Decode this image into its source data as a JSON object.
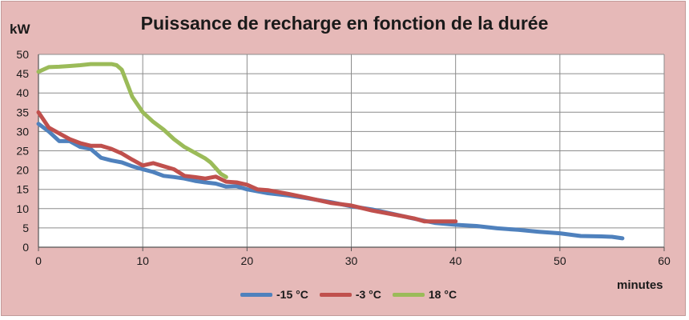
{
  "chart_data": {
    "type": "line",
    "title": "Puissance de recharge en fonction de la durée",
    "ylabel": "kW",
    "xlabel": "minutes",
    "xlim": [
      0,
      60
    ],
    "ylim": [
      0,
      50
    ],
    "xticks": [
      0,
      10,
      20,
      30,
      40,
      50,
      60
    ],
    "yticks": [
      0,
      5,
      10,
      15,
      20,
      25,
      30,
      35,
      40,
      45,
      50
    ],
    "grid": "horizontal and vertical",
    "legend_position": "bottom",
    "series": [
      {
        "name": "-15 °C",
        "color": "#4f81bd",
        "x": [
          0,
          1,
          2,
          3,
          4,
          5,
          6,
          7,
          8,
          9,
          10,
          11,
          12,
          13,
          14,
          15,
          16,
          17,
          18,
          19,
          20,
          22,
          24,
          26,
          28,
          30,
          32,
          34,
          36,
          38,
          40,
          42,
          44,
          46,
          48,
          50,
          52,
          54,
          55,
          56
        ],
        "y": [
          32,
          30,
          27.5,
          27.5,
          26,
          25.5,
          23.2,
          22.5,
          22,
          21,
          20.2,
          19.5,
          18.5,
          18.2,
          17.8,
          17.2,
          16.8,
          16.5,
          15.7,
          15.8,
          15,
          14,
          13.4,
          12.6,
          11.7,
          10.6,
          9.8,
          8.6,
          7.4,
          6.3,
          5.8,
          5.5,
          4.9,
          4.5,
          4,
          3.6,
          2.9,
          2.8,
          2.7,
          2.3
        ]
      },
      {
        "name": "-3 °C",
        "color": "#c0504d",
        "x": [
          0,
          1,
          2,
          3,
          4,
          5,
          6,
          7,
          8,
          9,
          10,
          11,
          12,
          13,
          14,
          15,
          16,
          17,
          18,
          19,
          20,
          21,
          22,
          24,
          26,
          28,
          30,
          32,
          34,
          36,
          37,
          38,
          40
        ],
        "y": [
          35,
          31,
          29.5,
          28,
          27,
          26.3,
          26.3,
          25.5,
          24.3,
          22.7,
          21.2,
          21.8,
          21,
          20.2,
          18.5,
          18.2,
          17.8,
          18.3,
          17,
          16.8,
          16.2,
          15,
          14.8,
          13.8,
          12.7,
          11.5,
          10.8,
          9.5,
          8.5,
          7.5,
          6.7,
          6.7,
          6.7
        ]
      },
      {
        "name": "18 °C",
        "color": "#9bbb59",
        "x": [
          0,
          1,
          2,
          3,
          4,
          5,
          6,
          7,
          7.5,
          8,
          8.5,
          9,
          10,
          11,
          12,
          13,
          14,
          15,
          16,
          16.5,
          17,
          17.5,
          18
        ],
        "y": [
          45.5,
          46.7,
          46.8,
          47,
          47.2,
          47.5,
          47.5,
          47.5,
          47.2,
          46,
          42.5,
          39,
          35,
          32.5,
          30.5,
          28,
          26,
          24.5,
          23,
          22,
          20.5,
          19,
          18.2
        ]
      }
    ]
  }
}
